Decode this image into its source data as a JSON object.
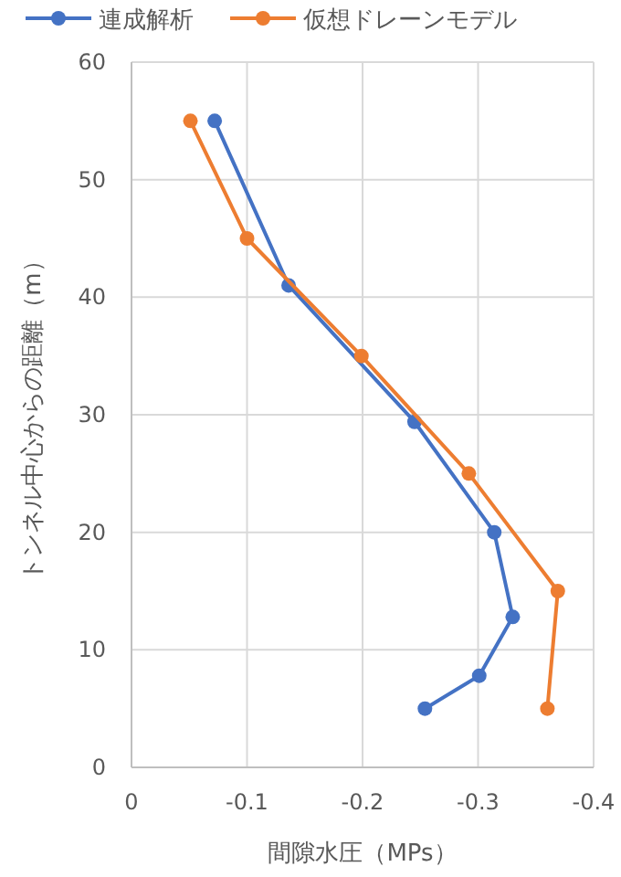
{
  "chart_data": {
    "type": "line",
    "xlabel": "間隙水圧（MPs）",
    "ylabel": "トンネル中心からの距離（m）",
    "xlim": [
      0,
      -0.4
    ],
    "xticks": [
      0,
      -0.1,
      -0.2,
      -0.3,
      -0.4
    ],
    "ylim": [
      0,
      60
    ],
    "yticks": [
      0,
      10,
      20,
      30,
      40,
      50,
      60
    ],
    "grid": true,
    "legend": "top",
    "marker": "circle",
    "line_style": "solid",
    "series": [
      {
        "name": "連成解析",
        "color": "#4472c4",
        "x": [
          -0.072,
          -0.136,
          -0.245,
          -0.314,
          -0.33,
          -0.301,
          -0.254
        ],
        "values": [
          55,
          41,
          29.4,
          20,
          12.8,
          7.8,
          5
        ]
      },
      {
        "name": "仮想ドレーンモデル",
        "color": "#ed7d31",
        "x": [
          -0.051,
          -0.1,
          -0.199,
          -0.292,
          -0.369,
          -0.36
        ],
        "values": [
          55,
          45,
          35,
          25,
          15,
          5
        ]
      }
    ]
  }
}
